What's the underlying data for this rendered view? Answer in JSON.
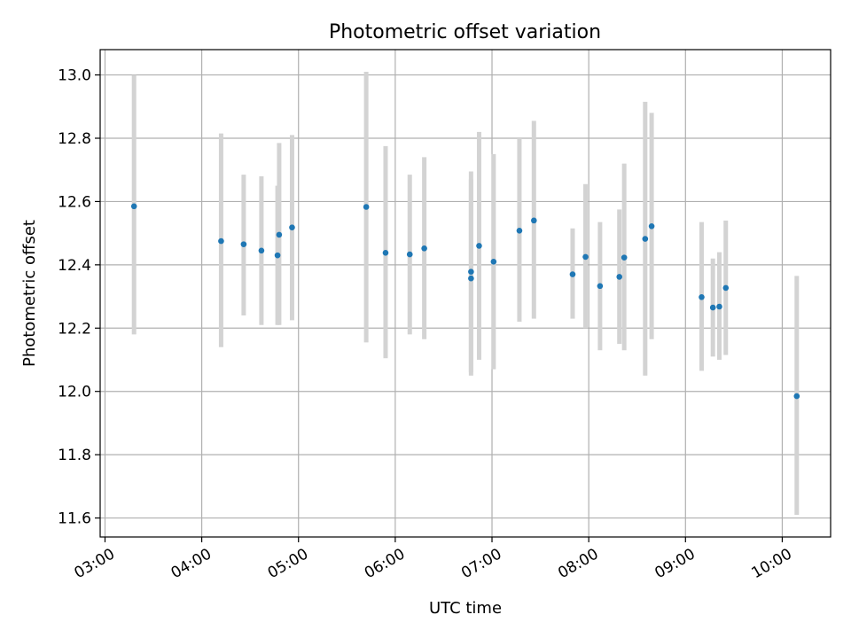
{
  "chart_data": {
    "type": "scatter",
    "title": "Photometric offset variation",
    "xlabel": "UTC time",
    "ylabel": "Photometric offset",
    "date": "",
    "xlim": [
      "02:57",
      "10:30"
    ],
    "ylim": [
      11.54,
      13.08
    ],
    "xticks": [
      "03:00",
      "04:00",
      "05:00",
      "06:00",
      "07:00",
      "08:00",
      "09:00",
      "10:00"
    ],
    "yticks": [
      11.6,
      11.8,
      12.0,
      12.2,
      12.4,
      12.6,
      12.8,
      13.0
    ],
    "grid": true,
    "legend": "none",
    "colors": {
      "point": "#1f77b4",
      "errorbar": "#d3d3d3"
    },
    "series": [
      {
        "points": [
          {
            "x": "03:18",
            "y": 12.585,
            "yerr": [
              12.18,
              13.0
            ]
          },
          {
            "x": "04:12",
            "y": 12.475,
            "yerr": [
              12.14,
              12.815
            ]
          },
          {
            "x": "04:26",
            "y": 12.465,
            "yerr": [
              12.24,
              12.685
            ]
          },
          {
            "x": "04:37",
            "y": 12.445,
            "yerr": [
              12.21,
              12.68
            ]
          },
          {
            "x": "04:47",
            "y": 12.43,
            "yerr": [
              12.21,
              12.65
            ]
          },
          {
            "x": "04:48",
            "y": 12.495,
            "yerr": [
              12.21,
              12.785
            ]
          },
          {
            "x": "04:56",
            "y": 12.518,
            "yerr": [
              12.225,
              12.81
            ]
          },
          {
            "x": "05:42",
            "y": 12.583,
            "yerr": [
              12.155,
              13.01
            ]
          },
          {
            "x": "05:54",
            "y": 12.438,
            "yerr": [
              12.105,
              12.775
            ]
          },
          {
            "x": "06:09",
            "y": 12.433,
            "yerr": [
              12.18,
              12.685
            ]
          },
          {
            "x": "06:18",
            "y": 12.452,
            "yerr": [
              12.165,
              12.74
            ]
          },
          {
            "x": "06:47",
            "y": 12.357,
            "yerr": [
              12.05,
              12.67
            ]
          },
          {
            "x": "06:47",
            "y": 12.378,
            "yerr": [
              12.06,
              12.695
            ]
          },
          {
            "x": "06:52",
            "y": 12.46,
            "yerr": [
              12.1,
              12.82
            ]
          },
          {
            "x": "07:01",
            "y": 12.41,
            "yerr": [
              12.07,
              12.75
            ]
          },
          {
            "x": "07:17",
            "y": 12.508,
            "yerr": [
              12.22,
              12.8
            ]
          },
          {
            "x": "07:26",
            "y": 12.54,
            "yerr": [
              12.23,
              12.855
            ]
          },
          {
            "x": "07:50",
            "y": 12.37,
            "yerr": [
              12.23,
              12.515
            ]
          },
          {
            "x": "07:58",
            "y": 12.425,
            "yerr": [
              12.2,
              12.655
            ]
          },
          {
            "x": "08:07",
            "y": 12.333,
            "yerr": [
              12.13,
              12.535
            ]
          },
          {
            "x": "08:19",
            "y": 12.362,
            "yerr": [
              12.15,
              12.575
            ]
          },
          {
            "x": "08:22",
            "y": 12.423,
            "yerr": [
              12.13,
              12.72
            ]
          },
          {
            "x": "08:35",
            "y": 12.482,
            "yerr": [
              12.05,
              12.915
            ]
          },
          {
            "x": "08:39",
            "y": 12.522,
            "yerr": [
              12.165,
              12.88
            ]
          },
          {
            "x": "09:10",
            "y": 12.298,
            "yerr": [
              12.065,
              12.535
            ]
          },
          {
            "x": "09:17",
            "y": 12.265,
            "yerr": [
              12.11,
              12.42
            ]
          },
          {
            "x": "09:21",
            "y": 12.268,
            "yerr": [
              12.1,
              12.44
            ]
          },
          {
            "x": "09:25",
            "y": 12.327,
            "yerr": [
              12.115,
              12.54
            ]
          },
          {
            "x": "10:09",
            "y": 11.985,
            "yerr": [
              11.61,
              12.365
            ]
          }
        ]
      }
    ]
  }
}
